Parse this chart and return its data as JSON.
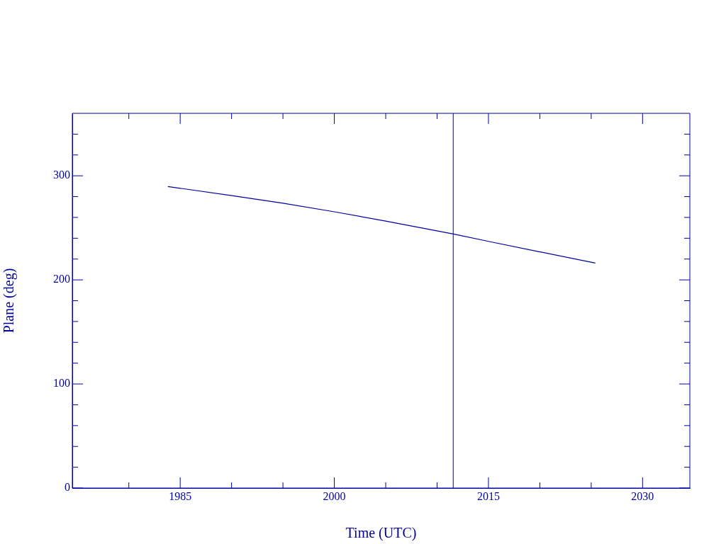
{
  "chart_data": {
    "type": "line",
    "xlabel": "Time (UTC)",
    "ylabel": "Plane (deg)",
    "xlim": [
      1974.5,
      2034.6
    ],
    "xticks": [
      {
        "value": 1980,
        "label": null
      },
      1985,
      {
        "value": 1990,
        "label": null
      },
      {
        "value": 1995,
        "label": null
      },
      2000,
      {
        "value": 2005,
        "label": null
      },
      {
        "value": 2010,
        "label": null
      },
      2015,
      {
        "value": 2020,
        "label": null
      },
      {
        "value": 2025,
        "label": null
      },
      2030
    ],
    "ylim": [
      0,
      360
    ],
    "yticks": [
      0,
      {
        "value": 20,
        "label": null
      },
      {
        "value": 40,
        "label": null
      },
      {
        "value": 60,
        "label": null
      },
      {
        "value": 80,
        "label": null
      },
      100,
      {
        "value": 120,
        "label": null
      },
      {
        "value": 140,
        "label": null
      },
      {
        "value": 160,
        "label": null
      },
      {
        "value": 180,
        "label": null
      },
      200,
      {
        "value": 220,
        "label": null
      },
      {
        "value": 240,
        "label": null
      },
      {
        "value": 260,
        "label": null
      },
      {
        "value": 280,
        "label": null
      },
      300,
      {
        "value": 320,
        "label": null
      },
      {
        "value": 340,
        "label": null
      }
    ],
    "series": [
      {
        "color": "#0000a0",
        "x": [
          1983.8,
          1990,
          1995,
          2000,
          2005,
          2011.6,
          2015,
          2020,
          2025.4
        ],
        "values": [
          289.7,
          281,
          273.7,
          265.4,
          256.5,
          244,
          237,
          226.9,
          216.1
        ]
      }
    ],
    "ref_lines": [
      {
        "axis": "x",
        "value": 2011.57,
        "color": "#0000a0"
      }
    ],
    "grid": false,
    "legend": false,
    "marker": "none",
    "line_style": "solid"
  }
}
